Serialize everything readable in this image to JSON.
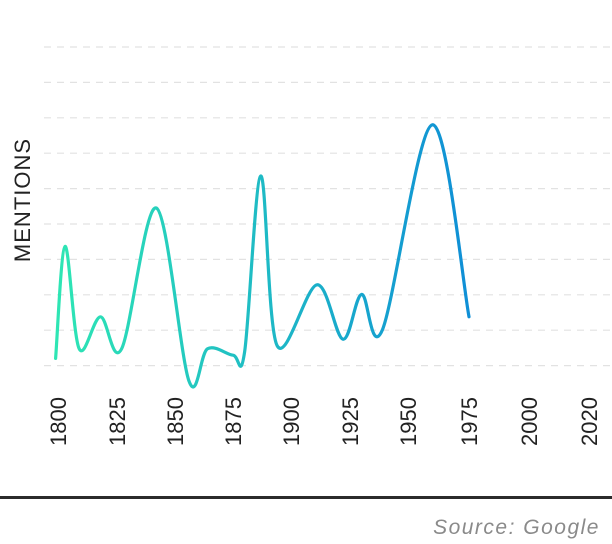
{
  "chart_data": {
    "type": "line",
    "ylabel": "MENTIONS",
    "xlabel": "",
    "x_ticks": [
      "1800",
      "1825",
      "1850",
      "1875",
      "1900",
      "1925",
      "1950",
      "1975",
      "2000",
      "2020"
    ],
    "xlim": [
      1800,
      2025
    ],
    "ylim": [
      0,
      10
    ],
    "grid": "horizontal dashed",
    "gradient_colors": [
      "#2ee6b4",
      "#0f8fd6"
    ],
    "line_color_start": "#2ee6b4",
    "line_color_end": "#0f8fd6",
    "series": [
      {
        "values": [
          {
            "x": 1799,
            "y": 0.3
          },
          {
            "x": 1803,
            "y": 3.8
          },
          {
            "x": 1809,
            "y": 0.6
          },
          {
            "x": 1818,
            "y": 1.6
          },
          {
            "x": 1827,
            "y": 0.6
          },
          {
            "x": 1842,
            "y": 5.0
          },
          {
            "x": 1856,
            "y": -0.4
          },
          {
            "x": 1864,
            "y": 0.6
          },
          {
            "x": 1875,
            "y": 0.4
          },
          {
            "x": 1880,
            "y": 0.5
          },
          {
            "x": 1887,
            "y": 6.0
          },
          {
            "x": 1894,
            "y": 0.7
          },
          {
            "x": 1911,
            "y": 2.6
          },
          {
            "x": 1922,
            "y": 0.9
          },
          {
            "x": 1930,
            "y": 2.3
          },
          {
            "x": 1939,
            "y": 1.2
          },
          {
            "x": 1960,
            "y": 7.6
          },
          {
            "x": 1975,
            "y": 1.6
          }
        ]
      }
    ]
  },
  "source": "Source: Google"
}
